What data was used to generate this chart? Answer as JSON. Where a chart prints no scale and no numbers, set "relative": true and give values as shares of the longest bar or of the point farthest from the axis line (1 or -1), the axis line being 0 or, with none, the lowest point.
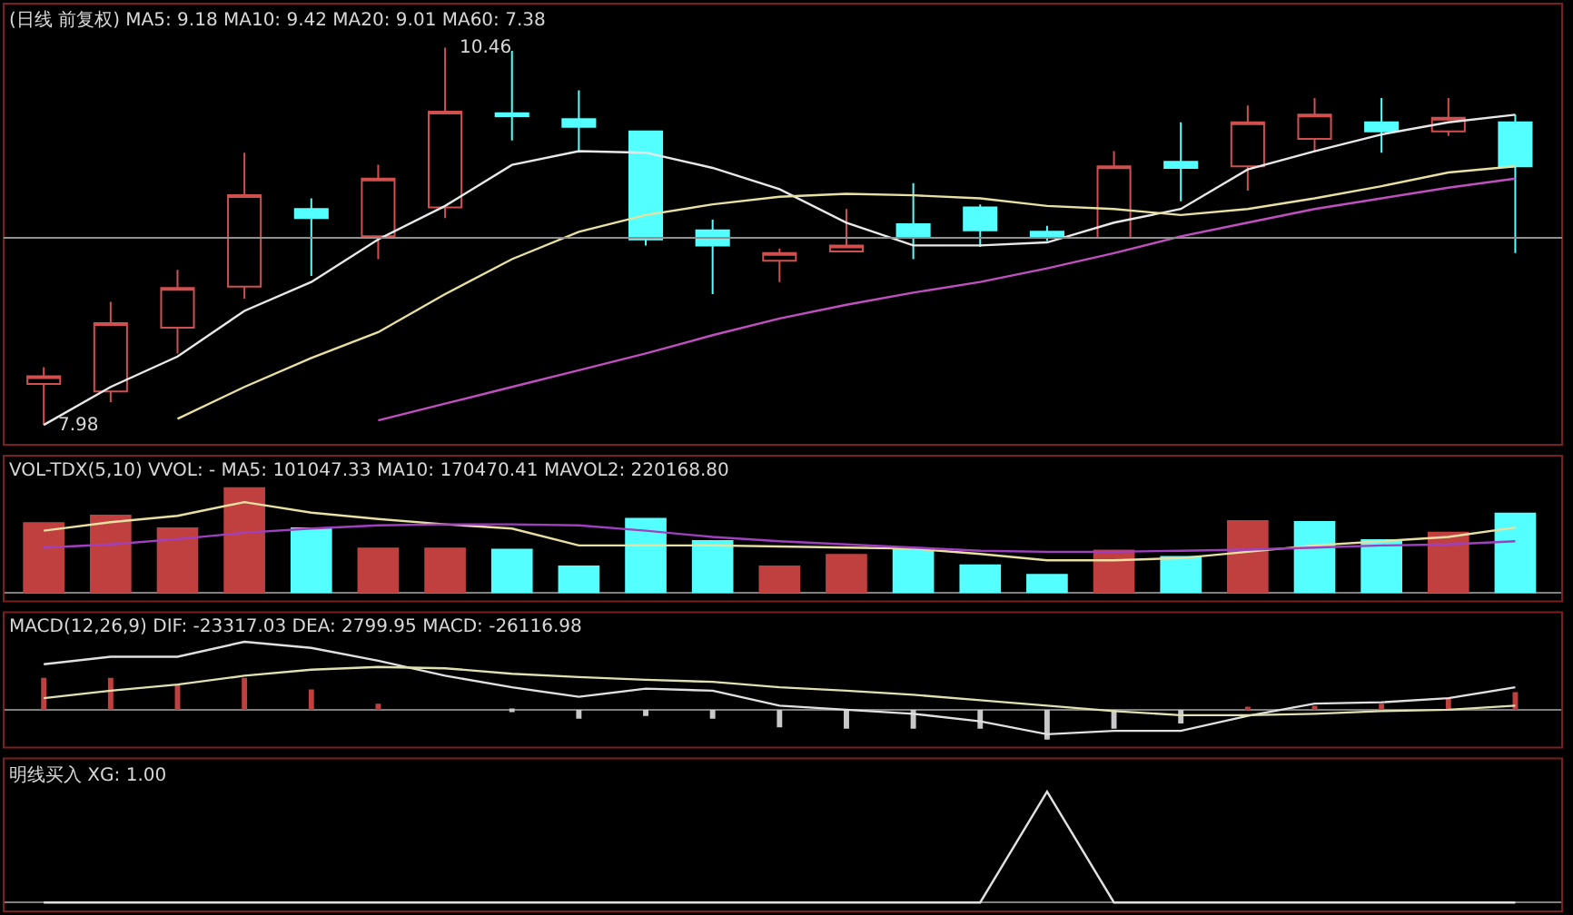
{
  "chart_data": [
    {
      "type": "candlestick",
      "title": "(日线 前复权) MA5: 9.18 MA10: 9.42 MA20: 9.01 MA60: 7.38",
      "categories": [
        null,
        null,
        null,
        null,
        null,
        null,
        null,
        null,
        null,
        null,
        null,
        null,
        null,
        null,
        null,
        null,
        null,
        null,
        null,
        null,
        null,
        null,
        null
      ],
      "ohlc": [
        [
          8.25,
          8.36,
          7.98,
          8.3
        ],
        [
          8.2,
          8.79,
          8.13,
          8.65
        ],
        [
          8.62,
          9.0,
          8.45,
          8.88
        ],
        [
          8.89,
          9.77,
          8.81,
          9.49
        ],
        [
          9.4,
          9.47,
          8.96,
          9.34
        ],
        [
          9.22,
          9.69,
          9.07,
          9.6
        ],
        [
          9.41,
          10.46,
          9.34,
          10.04
        ],
        [
          10.03,
          10.44,
          9.85,
          10.01
        ],
        [
          9.99,
          10.18,
          9.77,
          9.94
        ],
        [
          9.91,
          9.91,
          9.16,
          9.2
        ],
        [
          9.26,
          9.33,
          8.84,
          9.16
        ],
        [
          9.06,
          9.14,
          8.92,
          9.11
        ],
        [
          9.12,
          9.4,
          9.12,
          9.16
        ],
        [
          9.3,
          9.57,
          9.07,
          9.21
        ],
        [
          9.41,
          9.43,
          9.15,
          9.26
        ],
        [
          9.25,
          9.29,
          9.19,
          9.21
        ],
        [
          9.21,
          9.78,
          9.21,
          9.68
        ],
        [
          9.71,
          9.97,
          9.45,
          9.67
        ],
        [
          9.68,
          10.08,
          9.52,
          9.97
        ],
        [
          9.86,
          10.13,
          9.78,
          10.02
        ],
        [
          9.97,
          10.13,
          9.77,
          9.91
        ],
        [
          9.91,
          10.13,
          9.88,
          10.0
        ],
        [
          9.97,
          10.02,
          9.11,
          9.68
        ]
      ],
      "series": [
        {
          "type": "line",
          "color": "#e8e8e8",
          "values": [
            7.98,
            8.23,
            8.43,
            8.73,
            8.92,
            9.2,
            9.42,
            9.69,
            9.78,
            9.77,
            9.67,
            9.53,
            9.31,
            9.16,
            9.16,
            9.18,
            9.31,
            9.4,
            9.66,
            9.78,
            9.89,
            9.97,
            10.02
          ]
        },
        {
          "type": "line",
          "color": "#e8e0a0",
          "values": [
            null,
            null,
            8.02,
            8.23,
            8.42,
            8.59,
            8.84,
            9.07,
            9.25,
            9.36,
            9.43,
            9.48,
            9.5,
            9.49,
            9.47,
            9.42,
            9.4,
            9.36,
            9.4,
            9.47,
            9.55,
            9.64,
            9.68
          ]
        },
        {
          "type": "line",
          "color": "#c050c0",
          "values": [
            null,
            null,
            null,
            null,
            null,
            8.01,
            8.12,
            8.23,
            8.34,
            8.45,
            8.57,
            8.68,
            8.77,
            8.85,
            8.92,
            9.01,
            9.11,
            9.22,
            9.31,
            9.4,
            9.47,
            9.54,
            9.6
          ]
        }
      ],
      "ylim": [
        7.85,
        10.75
      ],
      "tick_labels": false,
      "annotations": [
        "10.46",
        "7.98"
      ],
      "ref_lines": [
        {
          "axis": "y",
          "value": 9.21,
          "color": "#909090"
        }
      ]
    },
    {
      "type": "bar",
      "relative": true,
      "title": "VOL-TDX(5,10) VVOL: - MA5: 101047.33 MA10: 170470.41 MAVOL2: 220168.80",
      "categories": [
        null,
        null,
        null,
        null,
        null,
        null,
        null,
        null,
        null,
        null,
        null,
        null,
        null,
        null,
        null,
        null,
        null,
        null,
        null,
        null,
        null,
        null,
        null
      ],
      "series": [
        {
          "type": "bar",
          "colors": [
            "#c04040",
            "#c04040",
            "#c04040",
            "#c04040",
            "#54ffff",
            "#c04040",
            "#c04040",
            "#54ffff",
            "#54ffff",
            "#54ffff",
            "#54ffff",
            "#c04040",
            "#c04040",
            "#54ffff",
            "#54ffff",
            "#54ffff",
            "#c04040",
            "#54ffff",
            "#c04040",
            "#54ffff",
            "#54ffff",
            "#c04040",
            "#54ffff"
          ],
          "values": [
            0.67,
            0.74,
            0.62,
            1,
            0.62,
            0.43,
            0.43,
            0.42,
            0.26,
            0.71,
            0.5,
            0.26,
            0.37,
            0.43,
            0.27,
            0.18,
            0.41,
            0.35,
            0.69,
            0.68,
            0.51,
            0.58,
            0.76
          ]
        },
        {
          "type": "line",
          "color": "#e8e0a0",
          "values": [
            0.59,
            0.67,
            0.73,
            0.86,
            0.76,
            0.7,
            0.65,
            0.61,
            0.45,
            0.45,
            0.45,
            0.44,
            0.43,
            0.42,
            0.37,
            0.31,
            0.31,
            0.33,
            0.39,
            0.45,
            0.49,
            0.53,
            0.62
          ]
        },
        {
          "type": "line",
          "color": "#a040c0",
          "values": [
            0.43,
            0.46,
            0.51,
            0.57,
            0.61,
            0.64,
            0.65,
            0.65,
            0.64,
            0.59,
            0.53,
            0.49,
            0.46,
            0.43,
            0.4,
            0.39,
            0.39,
            0.4,
            0.41,
            0.43,
            0.45,
            0.46,
            0.49
          ]
        }
      ],
      "tick_labels": false
    },
    {
      "type": "bar",
      "relative": true,
      "title": "MACD(12,26,9) DIF: -23317.03 DEA: 2799.95 MACD: -26116.98",
      "categories": [
        null,
        null,
        null,
        null,
        null,
        null,
        null,
        null,
        null,
        null,
        null,
        null,
        null,
        null,
        null,
        null,
        null,
        null,
        null,
        null,
        null,
        null,
        null
      ],
      "series": [
        {
          "type": "bar",
          "colors": [
            "#c04040",
            "#c04040",
            "#c04040",
            "#c04040",
            "#c04040",
            "#c04040",
            "#c04040",
            "#c8c8c8",
            "#c8c8c8",
            "#c8c8c8",
            "#c8c8c8",
            "#c8c8c8",
            "#c8c8c8",
            "#c8c8c8",
            "#c8c8c8",
            "#c8c8c8",
            "#c8c8c8",
            "#c8c8c8",
            "#c04040",
            "#c04040",
            "#c04040",
            "#c04040",
            "#c04040"
          ],
          "values": [
            0.47,
            0.47,
            0.36,
            0.47,
            0.3,
            0.09,
            0,
            -0.03,
            -0.13,
            -0.09,
            -0.13,
            -0.26,
            -0.28,
            -0.28,
            -0.28,
            -0.44,
            -0.28,
            -0.2,
            0.02,
            0.06,
            0.09,
            0.18,
            0.26
          ]
        },
        {
          "type": "line",
          "color": "#e0e0e0",
          "values": [
            0.67,
            0.78,
            0.78,
            1,
            0.91,
            0.72,
            0.5,
            0.33,
            0.19,
            0.31,
            0.28,
            0.06,
            0,
            -0.06,
            -0.17,
            -0.36,
            -0.31,
            -0.31,
            -0.09,
            0.09,
            0.11,
            0.17,
            0.33
          ]
        },
        {
          "type": "line",
          "color": "#e0e0b0",
          "values": [
            0.17,
            0.28,
            0.37,
            0.5,
            0.59,
            0.63,
            0.61,
            0.53,
            0.48,
            0.44,
            0.41,
            0.33,
            0.28,
            0.22,
            0.14,
            0.06,
            -0.02,
            -0.08,
            -0.08,
            -0.06,
            -0.02,
            0,
            0.06
          ]
        }
      ],
      "tick_labels": false
    },
    {
      "type": "line",
      "relative": true,
      "title": "明线买入 XG: 1.00",
      "categories": [
        null,
        null,
        null,
        null,
        null,
        null,
        null,
        null,
        null,
        null,
        null,
        null,
        null,
        null,
        null,
        null,
        null,
        null,
        null,
        null,
        null,
        null,
        null
      ],
      "series": [
        {
          "color": "#e0e0e0",
          "values": [
            0,
            0,
            0,
            0,
            0,
            0,
            0,
            0,
            0,
            0,
            0,
            0,
            0,
            0,
            0,
            1,
            0,
            0,
            0,
            0,
            0,
            0,
            0
          ]
        }
      ],
      "tick_labels": false
    }
  ]
}
